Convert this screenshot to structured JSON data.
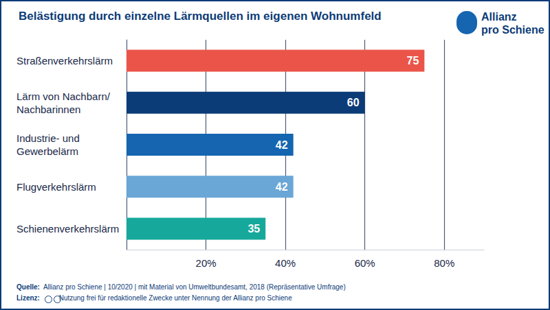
{
  "chart_data": {
    "type": "bar",
    "orientation": "horizontal",
    "title": "Belästigung durch einzelne Lärmquellen im eigenen Wohnumfeld",
    "categories": [
      "Straßenverkehrslärm",
      "Lärm von Nachbarn/\nNachbarinnen",
      "Industrie- und\nGewerbelärm",
      "Flugverkehrslärm",
      "Schienenverkehrslärm"
    ],
    "values": [
      75,
      60,
      42,
      42,
      35
    ],
    "colors": [
      "#eb5549",
      "#0c3c78",
      "#1565b0",
      "#6aa6d6",
      "#16a89b"
    ],
    "xlim": [
      0,
      90
    ],
    "xticks": [
      {
        "value": 20,
        "label": "20%"
      },
      {
        "value": 40,
        "label": "40%"
      },
      {
        "value": 60,
        "label": "60%"
      },
      {
        "value": 80,
        "label": "80%"
      }
    ],
    "grid": true,
    "data_labels": true,
    "brand": [
      "Allianz",
      "pro Schiene"
    ],
    "source_label": "Quelle:",
    "source": "Allianz pro Schiene | 10/2020 | mit Material von Umweltbundesamt, 2018 (Repräsentative Umfrage)",
    "license_label": "Lizenz:",
    "license": "Nutzung frei für redaktionelle Zwecke unter Nennung der Allianz pro Schiene"
  }
}
